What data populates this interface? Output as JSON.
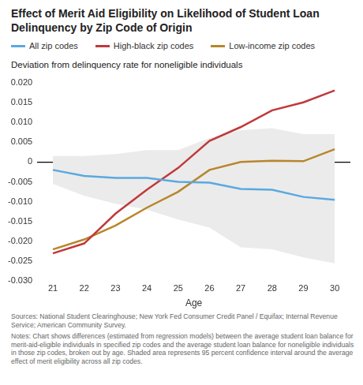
{
  "chart_data": {
    "type": "line",
    "title": "Effect of Merit Aid Eligibility on Likelihood of Student Loan Delinquency by Zip Code of Origin",
    "subtitle": "Deviation from delinquency rate for noneligible individuals",
    "x_label": "Age",
    "categories": [
      "21",
      "22",
      "23",
      "24",
      "25",
      "26",
      "27",
      "28",
      "29",
      "30"
    ],
    "series": [
      {
        "name": "All zip codes",
        "color": "#5aa9e0",
        "values": [
          -0.002,
          -0.0035,
          -0.004,
          -0.004,
          -0.005,
          -0.0052,
          -0.0068,
          -0.007,
          -0.0088,
          -0.0095
        ]
      },
      {
        "name": "High-black zip codes",
        "color": "#c0393b",
        "values": [
          -0.023,
          -0.0205,
          -0.013,
          -0.007,
          -0.0015,
          0.0053,
          0.0088,
          0.013,
          0.015,
          0.018
        ]
      },
      {
        "name": "Low-income zip codes",
        "color": "#b8862b",
        "values": [
          -0.022,
          -0.0195,
          -0.016,
          -0.0115,
          -0.0075,
          -0.002,
          0.0,
          0.0003,
          0.0002,
          0.0032
        ]
      }
    ],
    "confidence_band": {
      "color": "#ebebeb",
      "upper": [
        0.0015,
        0.0015,
        0.002,
        0.003,
        0.003,
        0.006,
        0.008,
        0.0085,
        0.007,
        0.007
      ],
      "lower": [
        -0.0055,
        -0.0085,
        -0.0105,
        -0.012,
        -0.0145,
        -0.0165,
        -0.0215,
        -0.022,
        -0.024,
        -0.0255
      ]
    },
    "ylim": [
      -0.03,
      0.02
    ],
    "yticks": [
      {
        "value": -0.03,
        "label": "-0.030"
      },
      -0.025,
      {
        "value": -0.02,
        "label": "-0.020"
      },
      -0.015,
      {
        "value": -0.01,
        "label": "-0.010"
      },
      -0.005,
      0,
      0.005,
      {
        "value": 0.01,
        "label": "0.010"
      },
      0.015,
      {
        "value": 0.02,
        "label": "0.020"
      }
    ],
    "grid": false,
    "legend": "top",
    "sources": "Sources: National Student Clearinghouse; New York Fed Consumer Credit Panel / Equifax; Internal Revenue Service; American Community Survey.",
    "notes": "Notes: Chart shows differences (estimated from regression models) between the average student loan balance for merit-aid-eligible individuals in specified zip codes and the average student loan balance for noneligible individuals in those zip codes, broken out by age. Shaded area represents 95 percent confidence interval around the average effect of merit eligibility across all zip codes."
  }
}
